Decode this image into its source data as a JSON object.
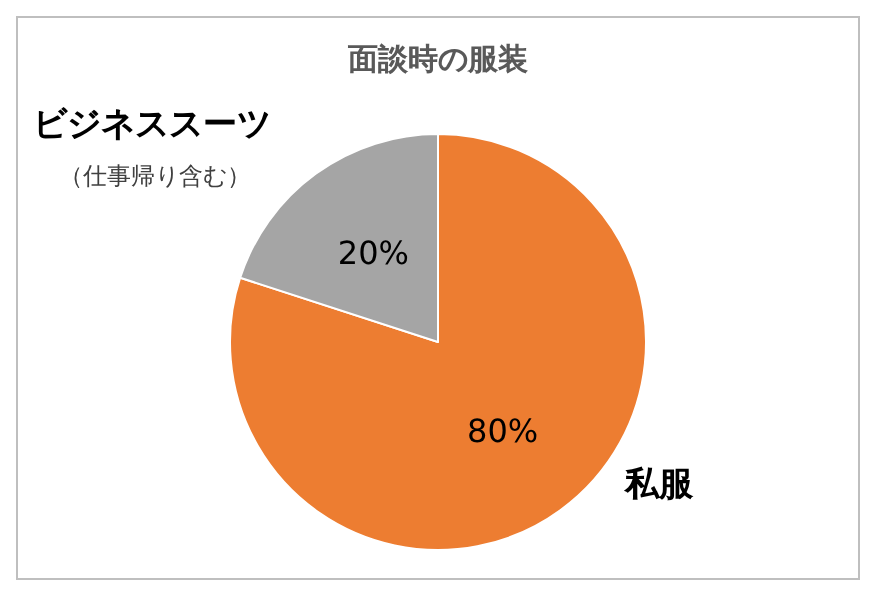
{
  "chart_data": {
    "type": "pie",
    "title": "面談時の服装",
    "categories": [
      "私服",
      "ビジネススーツ"
    ],
    "values": [
      80,
      20
    ],
    "colors": [
      "#ed7d31",
      "#a5a5a5"
    ],
    "value_labels": [
      "80%",
      "20%"
    ],
    "legend": false,
    "annotations": [
      "（仕事帰り含む）"
    ]
  }
}
